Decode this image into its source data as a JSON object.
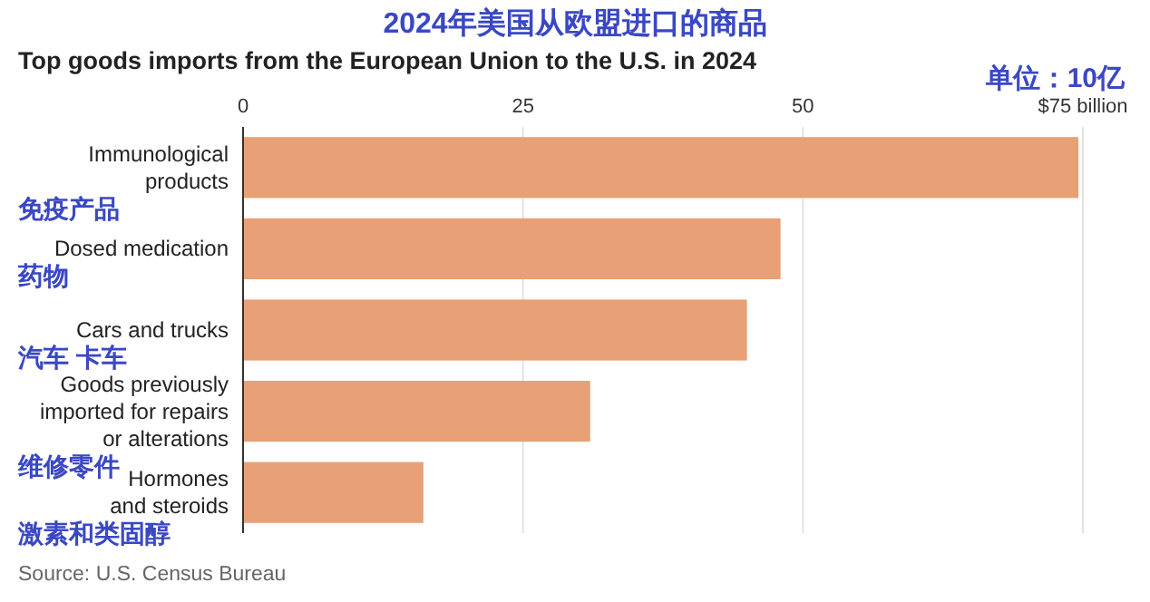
{
  "chart_data": {
    "type": "bar",
    "orientation": "horizontal",
    "title": "2024年美国从欧盟进口的商品",
    "subtitle": "Top goods imports from the European Union to the U.S. in 2024",
    "categories": [
      "Immunological\nproducts",
      "Dosed medication",
      "Cars and trucks",
      "Goods previously\nimported for repairs\nor alterations",
      "Hormones\nand steroids"
    ],
    "values": [
      74.6,
      48.0,
      45.0,
      31.0,
      16.1
    ],
    "color": "#e8a077",
    "xlim": [
      0,
      75
    ],
    "xticks": [
      0,
      25,
      50,
      {
        "value": 75,
        "label": "$75 billion"
      }
    ],
    "grid": "x",
    "annotations": [
      "免疫产品",
      "药物",
      "汽车 卡车",
      "维修零件",
      "激素和类固醇",
      "单位：10亿",
      "Source: U.S. Census Bureau"
    ]
  }
}
